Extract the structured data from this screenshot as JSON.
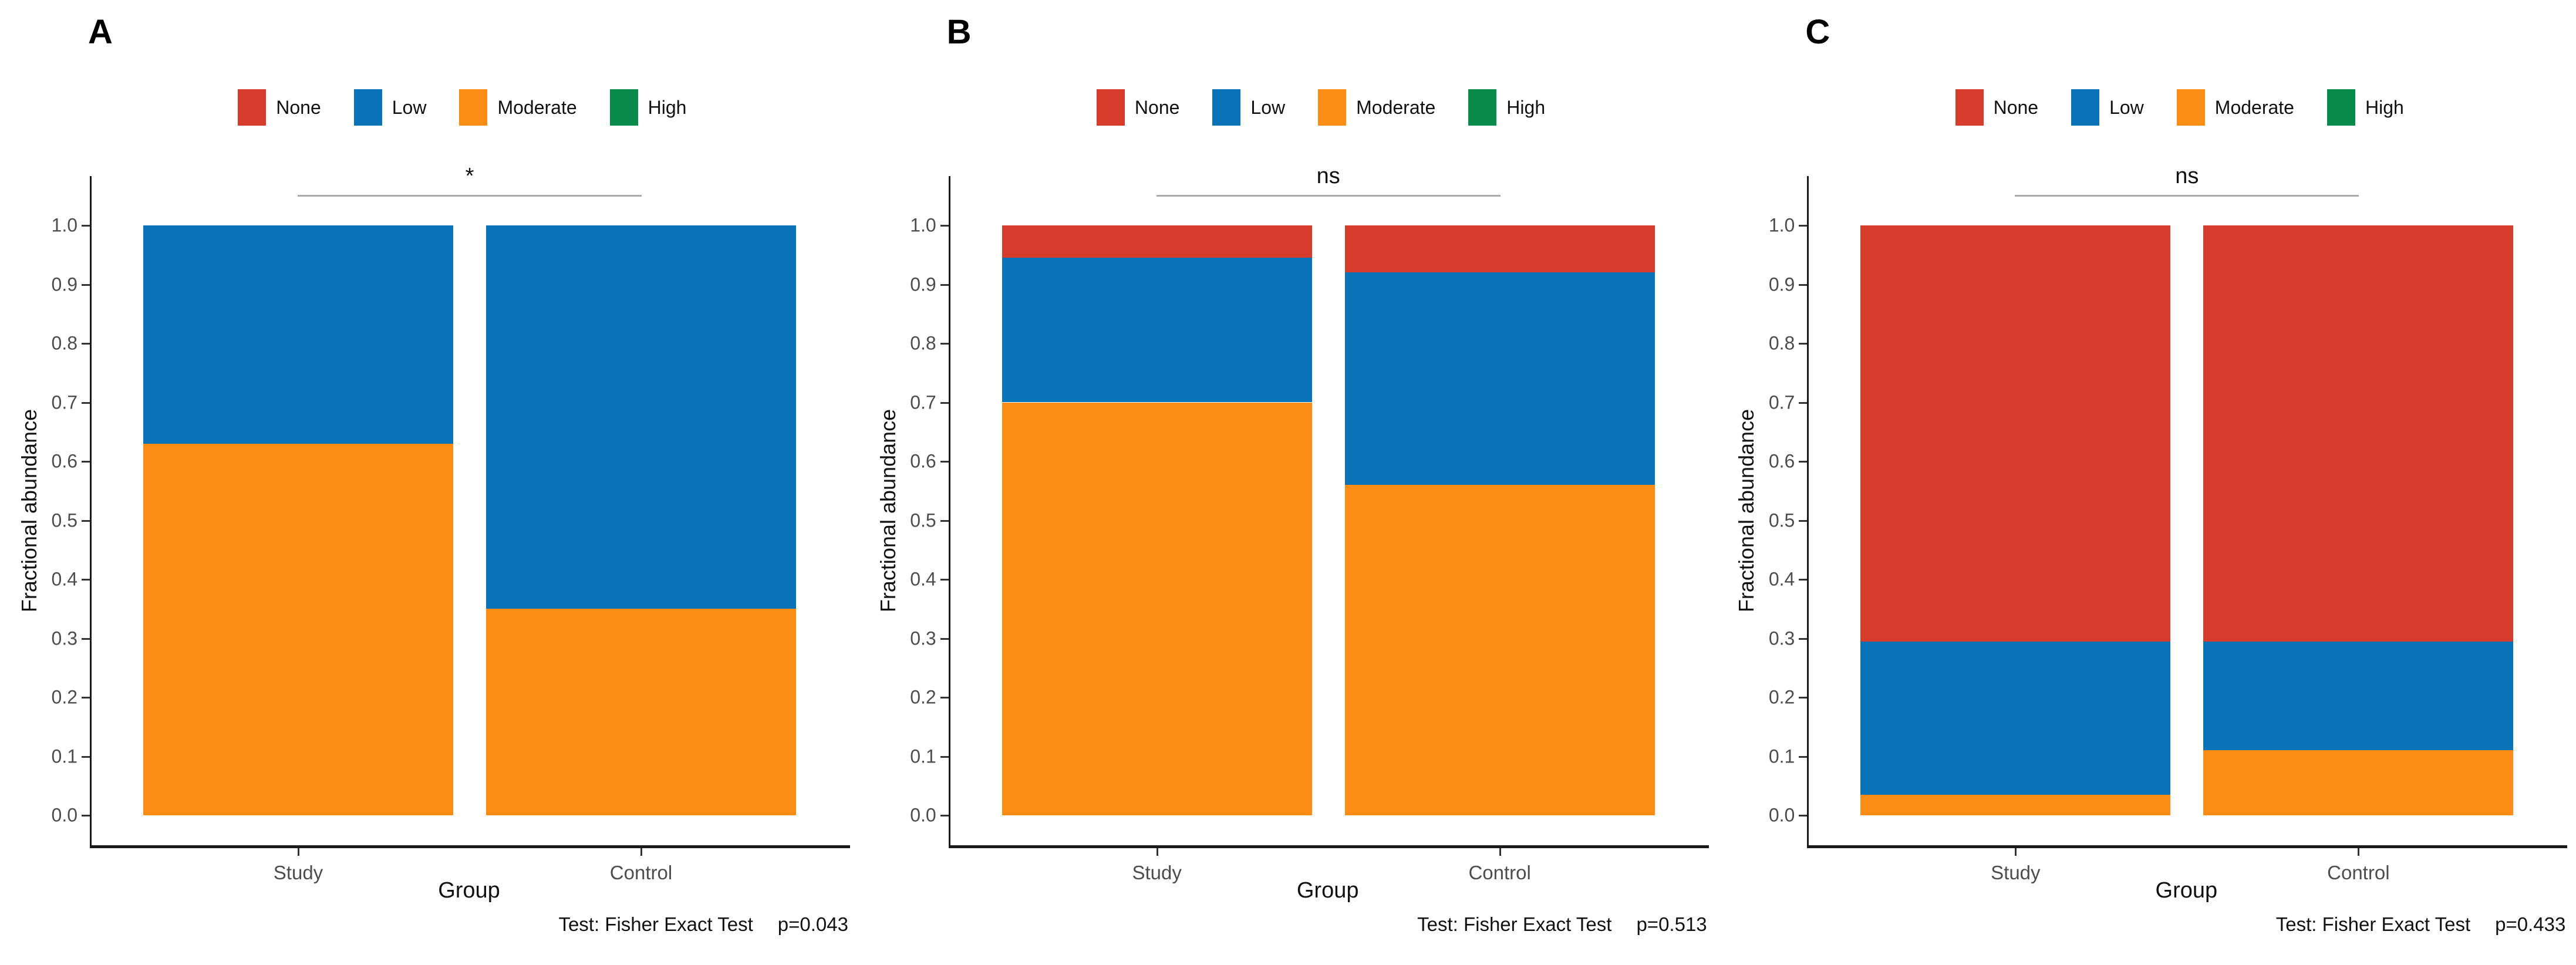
{
  "figure": {
    "background": "#FFFFFF"
  },
  "legend": {
    "labels": [
      "None",
      "Low",
      "Moderate",
      "High"
    ],
    "colors": {
      "None": "#D63C2B",
      "Low": "#0A73B7",
      "Moderate": "#FB8D14",
      "High": "#078A4C"
    }
  },
  "axes": {
    "y_tick_labels": [
      "0.0",
      "0.1",
      "0.2",
      "0.3",
      "0.4",
      "0.5",
      "0.6",
      "0.7",
      "0.8",
      "0.9",
      "1.0"
    ]
  },
  "style": {
    "axis_line_color": "#1A1A1A",
    "tick_text_color": "#4D4D4D",
    "sig_line_color": "#ABABAB",
    "text_color": "#111111"
  },
  "chart_data": [
    {
      "type": "bar",
      "stacked": true,
      "panel": "A",
      "xlabel": "Group",
      "ylabel": "Fractional abundance",
      "ylim": [
        0,
        1
      ],
      "categories": [
        "Study",
        "Control"
      ],
      "series": [
        {
          "name": "None",
          "values": [
            0.0,
            0.0
          ]
        },
        {
          "name": "Low",
          "values": [
            0.37,
            0.65
          ]
        },
        {
          "name": "Moderate",
          "values": [
            0.63,
            0.35
          ]
        },
        {
          "name": "High",
          "values": [
            0.0,
            0.0
          ]
        }
      ],
      "stack_order_bottom_to_top": [
        "High",
        "Moderate",
        "Low",
        "None"
      ],
      "significance": "*",
      "test": "Fisher Exact Test",
      "p_value": 0.043,
      "caption": {
        "test_label": "Test: Fisher Exact Test",
        "p_label": "p=0.043"
      }
    },
    {
      "type": "bar",
      "stacked": true,
      "panel": "B",
      "xlabel": "Group",
      "ylabel": "Fractional abundance",
      "ylim": [
        0,
        1
      ],
      "categories": [
        "Study",
        "Control"
      ],
      "series": [
        {
          "name": "None",
          "values": [
            0.055,
            0.08
          ]
        },
        {
          "name": "Low",
          "values": [
            0.245,
            0.36
          ]
        },
        {
          "name": "Moderate",
          "values": [
            0.7,
            0.56
          ]
        },
        {
          "name": "High",
          "values": [
            0.0,
            0.0
          ]
        }
      ],
      "stack_order_bottom_to_top": [
        "High",
        "Moderate",
        "Low",
        "None"
      ],
      "significance": "ns",
      "test": "Fisher Exact Test",
      "p_value": 0.513,
      "caption": {
        "test_label": "Test: Fisher Exact Test",
        "p_label": "p=0.513"
      }
    },
    {
      "type": "bar",
      "stacked": true,
      "panel": "C",
      "xlabel": "Group",
      "ylabel": "Fractional abundance",
      "ylim": [
        0,
        1
      ],
      "categories": [
        "Study",
        "Control"
      ],
      "series": [
        {
          "name": "None",
          "values": [
            0.705,
            0.705
          ]
        },
        {
          "name": "Low",
          "values": [
            0.26,
            0.185
          ]
        },
        {
          "name": "Moderate",
          "values": [
            0.035,
            0.11
          ]
        },
        {
          "name": "High",
          "values": [
            0.0,
            0.0
          ]
        }
      ],
      "stack_order_bottom_to_top": [
        "High",
        "Moderate",
        "Low",
        "None"
      ],
      "significance": "ns",
      "test": "Fisher Exact Test",
      "p_value": 0.433,
      "caption": {
        "test_label": "Test: Fisher Exact Test",
        "p_label": "p=0.433"
      }
    }
  ]
}
